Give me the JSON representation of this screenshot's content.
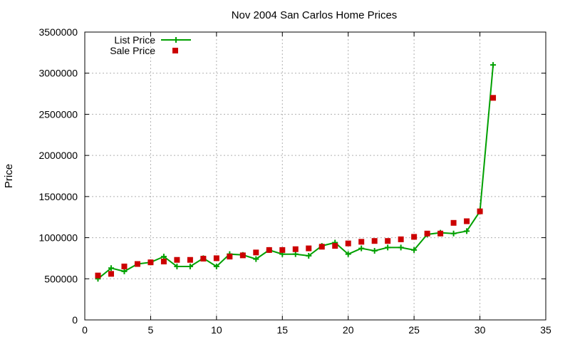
{
  "chart_data": {
    "type": "line",
    "title": "Nov 2004 San Carlos Home Prices",
    "xlabel": "",
    "ylabel": "Price",
    "xlim": [
      0,
      35
    ],
    "ylim": [
      0,
      3500000
    ],
    "xticks": [
      0,
      5,
      10,
      15,
      20,
      25,
      30,
      35
    ],
    "yticks": [
      0,
      500000,
      1000000,
      1500000,
      2000000,
      2500000,
      3000000,
      3500000
    ],
    "grid": true,
    "legend_position": "top-left",
    "series": [
      {
        "name": "List Price",
        "style": "line-plus",
        "color": "#00a000",
        "x": [
          1,
          2,
          3,
          4,
          5,
          6,
          7,
          8,
          9,
          10,
          11,
          12,
          13,
          14,
          15,
          16,
          17,
          18,
          19,
          20,
          21,
          22,
          23,
          24,
          25,
          26,
          27,
          28,
          29,
          30,
          31
        ],
        "y": [
          500000,
          630000,
          590000,
          680000,
          700000,
          770000,
          650000,
          650000,
          750000,
          650000,
          800000,
          790000,
          740000,
          850000,
          800000,
          800000,
          780000,
          900000,
          940000,
          800000,
          870000,
          840000,
          880000,
          880000,
          850000,
          1040000,
          1060000,
          1050000,
          1080000,
          1320000,
          3100000
        ]
      },
      {
        "name": "Sale Price",
        "style": "square",
        "color": "#cc0000",
        "x": [
          1,
          2,
          3,
          4,
          5,
          6,
          7,
          8,
          9,
          10,
          11,
          12,
          13,
          14,
          15,
          16,
          17,
          18,
          19,
          20,
          21,
          22,
          23,
          24,
          25,
          26,
          27,
          28,
          29,
          30,
          31
        ],
        "y": [
          540000,
          560000,
          650000,
          680000,
          700000,
          710000,
          730000,
          730000,
          745000,
          750000,
          770000,
          785000,
          820000,
          850000,
          850000,
          860000,
          870000,
          890000,
          900000,
          930000,
          950000,
          960000,
          960000,
          980000,
          1010000,
          1050000,
          1050000,
          1180000,
          1200000,
          1320000,
          2700000
        ]
      }
    ]
  }
}
